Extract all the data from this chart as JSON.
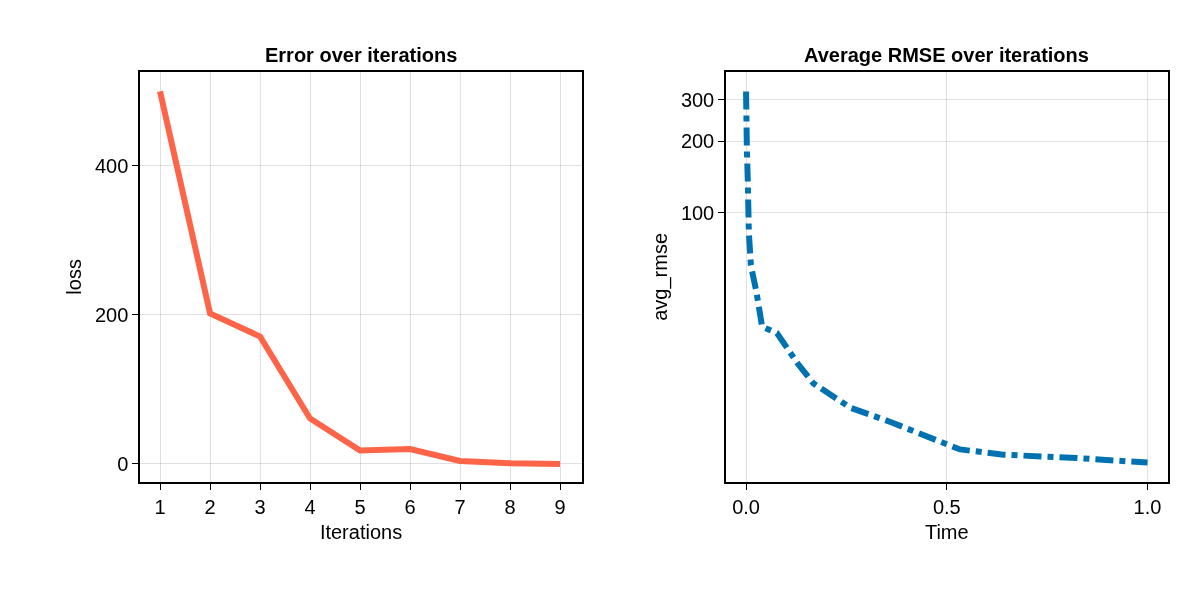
{
  "chart_data": [
    {
      "type": "line",
      "title": "Error over iterations",
      "xlabel": "Iterations",
      "ylabel": "loss",
      "x": [
        1,
        2,
        3,
        4,
        5,
        6,
        7,
        8,
        9
      ],
      "series": [
        {
          "color": "#fe6448",
          "values": [
            500,
            202,
            171,
            61,
            18,
            20,
            4,
            1,
            0
          ]
        }
      ],
      "xlim": [
        0.6,
        9.44
      ],
      "ylim": [
        -24,
        526
      ],
      "xticks": [
        1,
        2,
        3,
        4,
        5,
        6,
        7,
        8,
        9
      ],
      "yticks": [
        0,
        200,
        400
      ],
      "grid": true,
      "marker": "none",
      "line_style": "solid"
    },
    {
      "type": "line",
      "title": "Average RMSE over iterations",
      "xlabel": "Time",
      "ylabel": "avg_rmse",
      "x": [
        0,
        0.002,
        0.004,
        0.007,
        0.012,
        0.026,
        0.04,
        0.077,
        0.129,
        0.168,
        0.26,
        0.363,
        0.425,
        0.533,
        0.641,
        0.823,
        1.0
      ],
      "series": [
        {
          "color": "#0072b2",
          "values": [
            325,
            185,
            142,
            82,
            60,
            46,
            33,
            31,
            23,
            19,
            15,
            13,
            11.8,
            10,
            9.5,
            9.2,
            8.8
          ]
        }
      ],
      "xlim": [
        -0.05,
        1.05
      ],
      "ylim": [
        7.3,
        393
      ],
      "log": true,
      "xticks": [
        {
          "value": 0,
          "label": "0.0"
        },
        {
          "value": 0.5,
          "label": "0.5"
        },
        {
          "value": 1,
          "label": "1.0"
        }
      ],
      "yticks": [
        100,
        200,
        300
      ],
      "grid": true,
      "marker": "none",
      "line_style": "dashed"
    }
  ]
}
